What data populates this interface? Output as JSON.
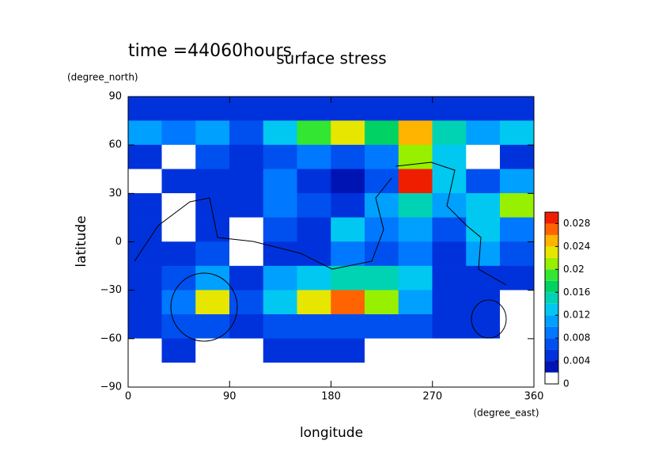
{
  "chart_data": {
    "type": "contour",
    "title": "surface stress",
    "subtitle": "time =44060hours",
    "x_label": "longitude",
    "x_unit": "(degree_east)",
    "y_label": "latitude",
    "y_unit": "(degree_north)",
    "xlim": [
      0,
      360
    ],
    "xticks": [
      0,
      90,
      180,
      270,
      360
    ],
    "ylim": [
      -90,
      90
    ],
    "yticks": [
      {
        "value": -90,
        "label": "−90"
      },
      {
        "value": -60,
        "label": "−60"
      },
      {
        "value": -30,
        "label": "−30"
      },
      0,
      30,
      60,
      90
    ],
    "lon_edges": [
      0,
      30,
      60,
      90,
      120,
      150,
      180,
      210,
      240,
      270,
      300,
      330,
      360
    ],
    "lat_edges": [
      90,
      75,
      60,
      45,
      30,
      15,
      0,
      -15,
      -30,
      -45,
      -60,
      -75,
      -90
    ],
    "z": [
      [
        0.004,
        0.004,
        0.004,
        0.004,
        0.004,
        0.004,
        0.004,
        0.004,
        0.004,
        0.004,
        0.004,
        0.004
      ],
      [
        0.01,
        0.008,
        0.01,
        0.006,
        0.012,
        0.018,
        0.022,
        0.016,
        0.024,
        0.014,
        0.01,
        0.012
      ],
      [
        0.004,
        0.001,
        0.006,
        0.004,
        0.006,
        0.008,
        0.006,
        0.008,
        0.02,
        0.012,
        0.001,
        0.004
      ],
      [
        0.001,
        0.004,
        0.005,
        0.004,
        0.008,
        0.004,
        0.002,
        0.006,
        0.028,
        0.012,
        0.006,
        0.01
      ],
      [
        0.004,
        0.001,
        0.005,
        0.004,
        0.008,
        0.006,
        0.004,
        0.01,
        0.014,
        0.01,
        0.012,
        0.02
      ],
      [
        0.004,
        0.001,
        0.004,
        0.001,
        0.006,
        0.004,
        0.012,
        0.008,
        0.01,
        0.006,
        0.012,
        0.008
      ],
      [
        0.004,
        0.005,
        0.006,
        0.001,
        0.004,
        0.004,
        0.008,
        0.006,
        0.008,
        0.004,
        0.01,
        0.006
      ],
      [
        0.004,
        0.006,
        0.01,
        0.004,
        0.01,
        0.012,
        0.014,
        0.014,
        0.012,
        0.004,
        0.004,
        0.004
      ],
      [
        0.004,
        0.008,
        0.022,
        0.006,
        0.012,
        0.022,
        0.026,
        0.02,
        0.01,
        0.004,
        0.004,
        0.001
      ],
      [
        0.004,
        0.006,
        0.006,
        0.004,
        0.006,
        0.006,
        0.006,
        0.006,
        0.006,
        0.004,
        0.004,
        0.001
      ],
      [
        0.001,
        0.004,
        0.001,
        0.001,
        0.004,
        0.004,
        0.004,
        0.001,
        0.001,
        0.001,
        0.001,
        0.001
      ],
      [
        0,
        0,
        0,
        0,
        0,
        0,
        0,
        0,
        0,
        0,
        0,
        0
      ]
    ],
    "levels": [
      0,
      0.002,
      0.004,
      0.006,
      0.008,
      0.01,
      0.012,
      0.014,
      0.016,
      0.018,
      0.02,
      0.022,
      0.024,
      0.026,
      0.028,
      0.03
    ],
    "colors": [
      "#ffffff",
      "#0014b4",
      "#0032dc",
      "#0050f0",
      "#0078ff",
      "#00a0ff",
      "#00c8f0",
      "#00d2b4",
      "#00d264",
      "#32e632",
      "#96f000",
      "#e6e600",
      "#ffb400",
      "#ff6400",
      "#f01e00"
    ],
    "cbar_lim": [
      0,
      0.03
    ],
    "cbar_ticks": [
      0,
      0.004,
      0.008,
      0.012,
      0.016,
      0.02,
      0.024,
      0.028
    ]
  }
}
